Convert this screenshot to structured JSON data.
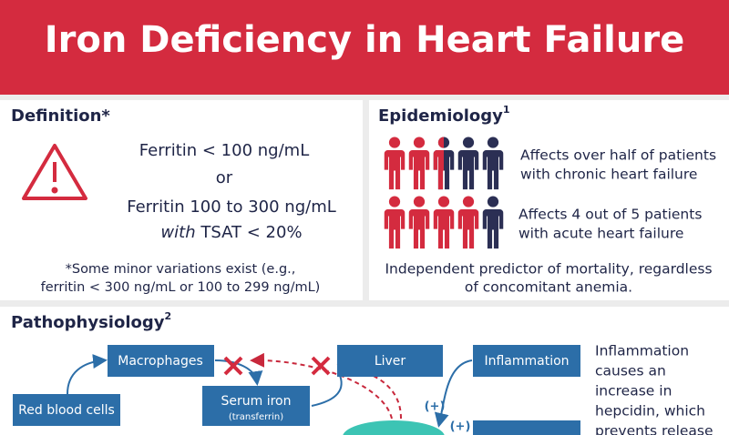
{
  "header": {
    "title": "Iron Deficiency in Heart Failure"
  },
  "definition": {
    "heading": "Definition*",
    "criteria": [
      "Ferritin < 100 ng/mL",
      "or",
      "Ferritin 100 to 300 ng/mL"
    ],
    "criterion_emphasis": "with",
    "criterion_rest": "TSAT < 20%",
    "footnote": [
      "*Some minor variations exist (e.g.,",
      "ferritin < 300 ng/mL or 100 to 299 ng/mL)"
    ]
  },
  "epidemiology": {
    "heading": "Epidemiology",
    "superscript": "1",
    "facts": [
      [
        "Affects over half of patients",
        "with chronic heart failure"
      ],
      [
        "Affects 4 out of 5 patients",
        "with acute heart failure"
      ]
    ],
    "note": [
      "Independent predictor of mortality, regardless",
      "of concomitant anemia."
    ]
  },
  "pathophysiology": {
    "heading": "Pathophysiology",
    "superscript": "2",
    "nodes": [
      "Macrophages",
      "Liver",
      "Inflammation",
      "Red blood cells",
      "Serum iron"
    ],
    "node_sublabel": "(transferrin)",
    "edge_labels": [
      "(+)",
      "(+)"
    ],
    "note": [
      "Inflammation",
      "causes an",
      "increase in",
      "hepcidin, which",
      "prevents release"
    ]
  }
}
